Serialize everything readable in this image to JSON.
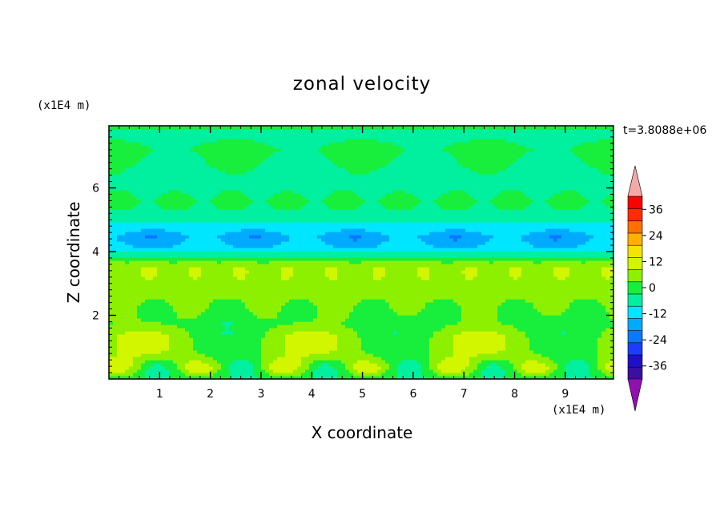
{
  "chart_data": {
    "type": "heatmap",
    "title": "zonal velocity",
    "xlabel": "X coordinate",
    "ylabel": "Z coordinate",
    "x_unit": "(x1E4 m)",
    "y_unit": "(x1E4 m)",
    "time_label": "t=3.8088e+06",
    "xlim": [
      0,
      9.95
    ],
    "ylim": [
      0,
      7.95
    ],
    "x_ticks": [
      1,
      2,
      3,
      4,
      5,
      6,
      7,
      8,
      9
    ],
    "y_ticks": [
      2,
      4,
      6
    ],
    "colorbar": {
      "levels": [
        -42,
        -36,
        -30,
        -24,
        -18,
        -12,
        -6,
        0,
        6,
        12,
        18,
        24,
        30,
        36,
        42
      ],
      "colors": [
        "#3b0fa0",
        "#1f10c8",
        "#1e3cff",
        "#0a78ff",
        "#00aaff",
        "#00e6ff",
        "#00f0a0",
        "#18ee3c",
        "#8cf000",
        "#d2f500",
        "#f2e400",
        "#ffb000",
        "#ff7000",
        "#ff2c00",
        "#ff0000"
      ],
      "under_color": "#9010b0",
      "over_color": "#f4a8a8",
      "tick_labels": [
        "36",
        "24",
        "12",
        "0",
        "-12",
        "-24",
        "-36"
      ]
    },
    "bands": [
      {
        "z": 0.05,
        "u": 2
      },
      {
        "z": 0.35,
        "u": 7
      },
      {
        "z": 0.8,
        "u": 8
      },
      {
        "z": 1.3,
        "u": 8
      },
      {
        "z": 1.75,
        "u": 4
      },
      {
        "z": 2.1,
        "u": 5
      },
      {
        "z": 2.6,
        "u": 8
      },
      {
        "z": 3.1,
        "u": 10
      },
      {
        "z": 3.55,
        "u": 11
      },
      {
        "z": 3.85,
        "u": 0
      },
      {
        "z": 4.15,
        "u": -11
      },
      {
        "z": 4.45,
        "u": -15
      },
      {
        "z": 4.75,
        "u": -9
      },
      {
        "z": 5.1,
        "u": -3
      },
      {
        "z": 5.6,
        "u": 2
      },
      {
        "z": 6.05,
        "u": -3
      },
      {
        "z": 6.6,
        "u": -2
      },
      {
        "z": 7.2,
        "u": 2
      },
      {
        "z": 7.7,
        "u": -3
      },
      {
        "z": 7.95,
        "u": 3
      }
    ],
    "waves": [
      {
        "kx": 3,
        "zc": 1.2,
        "zw": 0.6,
        "amp": 8,
        "phase": 0.3
      },
      {
        "kx": 6,
        "zc": 0.35,
        "zw": 0.3,
        "amp": 10,
        "phase": 1.1
      },
      {
        "kx": 5,
        "zc": 4.4,
        "zw": 0.35,
        "amp": 4,
        "phase": 2.0
      },
      {
        "kx": 7,
        "zc": 2.2,
        "zw": 0.35,
        "amp": 4,
        "phase": 0.7
      },
      {
        "kx": 4,
        "zc": 6.9,
        "zw": 0.6,
        "amp": 4,
        "phase": 1.6
      },
      {
        "kx": 9,
        "zc": 5.7,
        "zw": 0.4,
        "amp": 2.5,
        "phase": 0.4
      },
      {
        "kx": 11,
        "zc": 3.3,
        "zw": 0.3,
        "amp": 2.5,
        "phase": 2.4
      }
    ]
  }
}
